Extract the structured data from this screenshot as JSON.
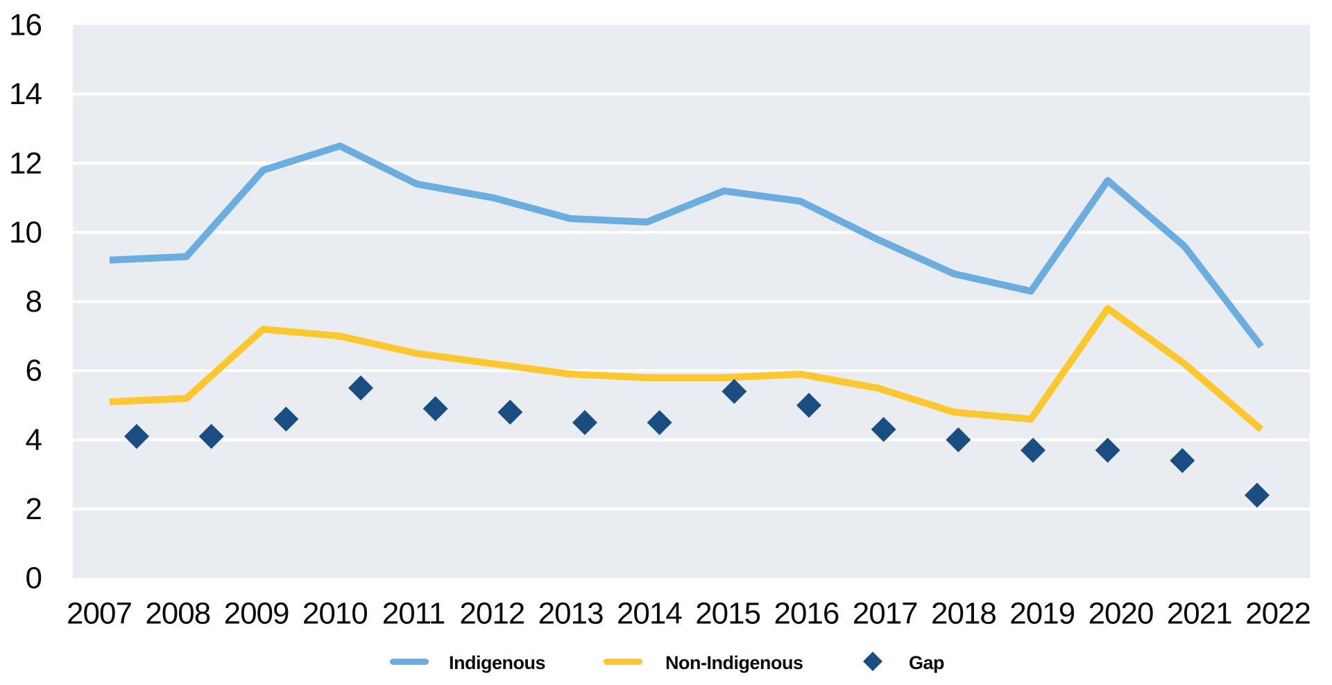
{
  "chart_data": {
    "type": "line",
    "title": "",
    "categories": [
      "2007",
      "2008",
      "2009",
      "2010",
      "2011",
      "2012",
      "2013",
      "2014",
      "2015",
      "2016",
      "2017",
      "2018",
      "2019",
      "2020",
      "2021",
      "2022"
    ],
    "series": [
      {
        "name": "Indigenous",
        "type": "line",
        "color": "#6badde",
        "values": [
          9.2,
          9.3,
          11.8,
          12.5,
          11.4,
          11.0,
          10.4,
          10.3,
          11.2,
          10.9,
          9.8,
          8.8,
          8.3,
          11.5,
          9.6,
          6.7
        ]
      },
      {
        "name": "Non-Indigenous",
        "type": "line",
        "color": "#fdc72d",
        "values": [
          5.1,
          5.2,
          7.2,
          7.0,
          6.5,
          6.2,
          5.9,
          5.8,
          5.8,
          5.9,
          5.5,
          4.8,
          4.6,
          7.8,
          6.2,
          4.3
        ]
      },
      {
        "name": "Gap",
        "type": "scatter",
        "marker": "diamond",
        "color": "#1a4d82",
        "values": [
          4.1,
          4.1,
          4.6,
          5.5,
          4.9,
          4.8,
          4.5,
          4.5,
          5.4,
          5.0,
          4.3,
          4.0,
          3.7,
          3.7,
          3.4,
          2.4
        ]
      }
    ],
    "xlabel": "",
    "ylabel": "",
    "ylim": [
      0,
      16
    ],
    "ytick_interval": 2,
    "y_tick_labels": [
      "0",
      "2",
      "4",
      "6",
      "8",
      "10",
      "12",
      "14",
      "16"
    ],
    "grid": "horizontal",
    "gridline_color": "#ffffff",
    "plot_background": "#e9edf1",
    "page_background": "#ffffff",
    "text_color": "#0a0a0a",
    "legend_position": "bottom-center",
    "legend": [
      {
        "label": "Indigenous",
        "marker": "line",
        "color": "#6badde"
      },
      {
        "label": "Non-Indigenous",
        "marker": "line",
        "color": "#fdc72d"
      },
      {
        "label": "Gap",
        "marker": "diamond",
        "color": "#1a4d82"
      }
    ]
  }
}
